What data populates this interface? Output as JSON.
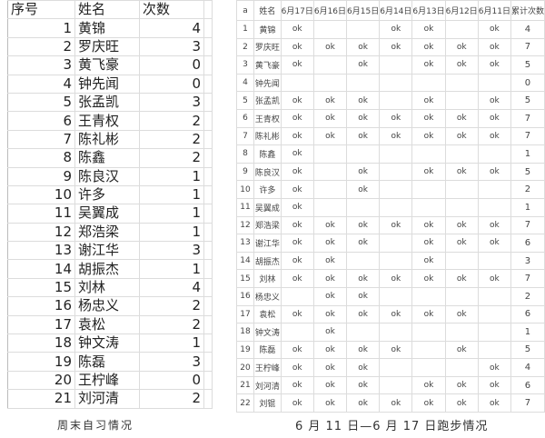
{
  "weekend_study": {
    "headers": [
      "序号",
      "姓名",
      "次数"
    ],
    "rows": [
      [
        "1",
        "黄锦",
        "4"
      ],
      [
        "2",
        "罗庆旺",
        "3"
      ],
      [
        "3",
        "黄飞豪",
        "0"
      ],
      [
        "4",
        "钟先闻",
        "0"
      ],
      [
        "5",
        "张孟凯",
        "3"
      ],
      [
        "6",
        "王青权",
        "2"
      ],
      [
        "7",
        "陈礼彬",
        "2"
      ],
      [
        "8",
        "陈鑫",
        "2"
      ],
      [
        "9",
        "陈良汉",
        "1"
      ],
      [
        "10",
        "许多",
        "1"
      ],
      [
        "11",
        "吴翼成",
        "1"
      ],
      [
        "12",
        "郑浩梁",
        "1"
      ],
      [
        "13",
        "谢江华",
        "3"
      ],
      [
        "14",
        "胡振杰",
        "1"
      ],
      [
        "15",
        "刘林",
        "4"
      ],
      [
        "16",
        "杨忠义",
        "2"
      ],
      [
        "17",
        "袁松",
        "2"
      ],
      [
        "18",
        "钟文涛",
        "1"
      ],
      [
        "19",
        "陈磊",
        "3"
      ],
      [
        "20",
        "王柠峰",
        "0"
      ],
      [
        "21",
        "刘河清",
        "2"
      ]
    ],
    "caption": "周末自习情况"
  },
  "running": {
    "headers": [
      "a",
      "姓名",
      "6月17日",
      "6月16日",
      "6月15日",
      "6月14日",
      "6月13日",
      "6月12日",
      "6月11日",
      "累计次数"
    ],
    "rows": [
      [
        "1",
        "黄锦",
        "ok",
        "",
        "",
        "ok",
        "ok",
        "",
        "ok",
        "4"
      ],
      [
        "2",
        "罗庆旺",
        "ok",
        "ok",
        "ok",
        "ok",
        "ok",
        "ok",
        "ok",
        "7"
      ],
      [
        "3",
        "黄飞豪",
        "ok",
        "",
        "ok",
        "",
        "ok",
        "ok",
        "ok",
        "5"
      ],
      [
        "4",
        "钟先闻",
        "",
        "",
        "",
        "",
        "",
        "",
        "",
        "0"
      ],
      [
        "5",
        "张孟凯",
        "ok",
        "ok",
        "ok",
        "",
        "ok",
        "",
        "ok",
        "5"
      ],
      [
        "6",
        "王青权",
        "ok",
        "ok",
        "ok",
        "ok",
        "ok",
        "ok",
        "ok",
        "7"
      ],
      [
        "7",
        "陈礼彬",
        "ok",
        "ok",
        "ok",
        "ok",
        "ok",
        "ok",
        "ok",
        "7"
      ],
      [
        "8",
        "陈鑫",
        "ok",
        "",
        "",
        "",
        "",
        "",
        "",
        "1"
      ],
      [
        "9",
        "陈良汉",
        "ok",
        "",
        "ok",
        "",
        "ok",
        "ok",
        "ok",
        "5"
      ],
      [
        "10",
        "许多",
        "ok",
        "",
        "ok",
        "",
        "",
        "",
        "",
        "2"
      ],
      [
        "11",
        "吴翼成",
        "ok",
        "",
        "",
        "",
        "",
        "",
        "",
        "1"
      ],
      [
        "12",
        "郑浩梁",
        "ok",
        "ok",
        "ok",
        "ok",
        "ok",
        "ok",
        "ok",
        "7"
      ],
      [
        "13",
        "谢江华",
        "ok",
        "ok",
        "ok",
        "",
        "ok",
        "ok",
        "ok",
        "6"
      ],
      [
        "14",
        "胡振杰",
        "ok",
        "ok",
        "",
        "",
        "ok",
        "",
        "",
        "3"
      ],
      [
        "15",
        "刘林",
        "ok",
        "ok",
        "ok",
        "ok",
        "ok",
        "ok",
        "ok",
        "7"
      ],
      [
        "16",
        "杨忠义",
        "",
        "ok",
        "ok",
        "",
        "",
        "",
        "",
        "2"
      ],
      [
        "17",
        "袁松",
        "ok",
        "ok",
        "ok",
        "ok",
        "ok",
        "ok",
        "",
        "6"
      ],
      [
        "18",
        "钟文涛",
        "",
        "ok",
        "",
        "",
        "",
        "",
        "",
        "1"
      ],
      [
        "19",
        "陈磊",
        "ok",
        "ok",
        "ok",
        "ok",
        "",
        "ok",
        "",
        "5"
      ],
      [
        "20",
        "王柠峰",
        "ok",
        "ok",
        "ok",
        "",
        "",
        "",
        "ok",
        "4"
      ],
      [
        "21",
        "刘河清",
        "ok",
        "ok",
        "ok",
        "",
        "ok",
        "ok",
        "ok",
        "6"
      ],
      [
        "22",
        "刘锟",
        "ok",
        "ok",
        "ok",
        "ok",
        "ok",
        "ok",
        "ok",
        "7"
      ]
    ],
    "caption": "6 月 11 日—6 月 17 日跑步情况"
  }
}
